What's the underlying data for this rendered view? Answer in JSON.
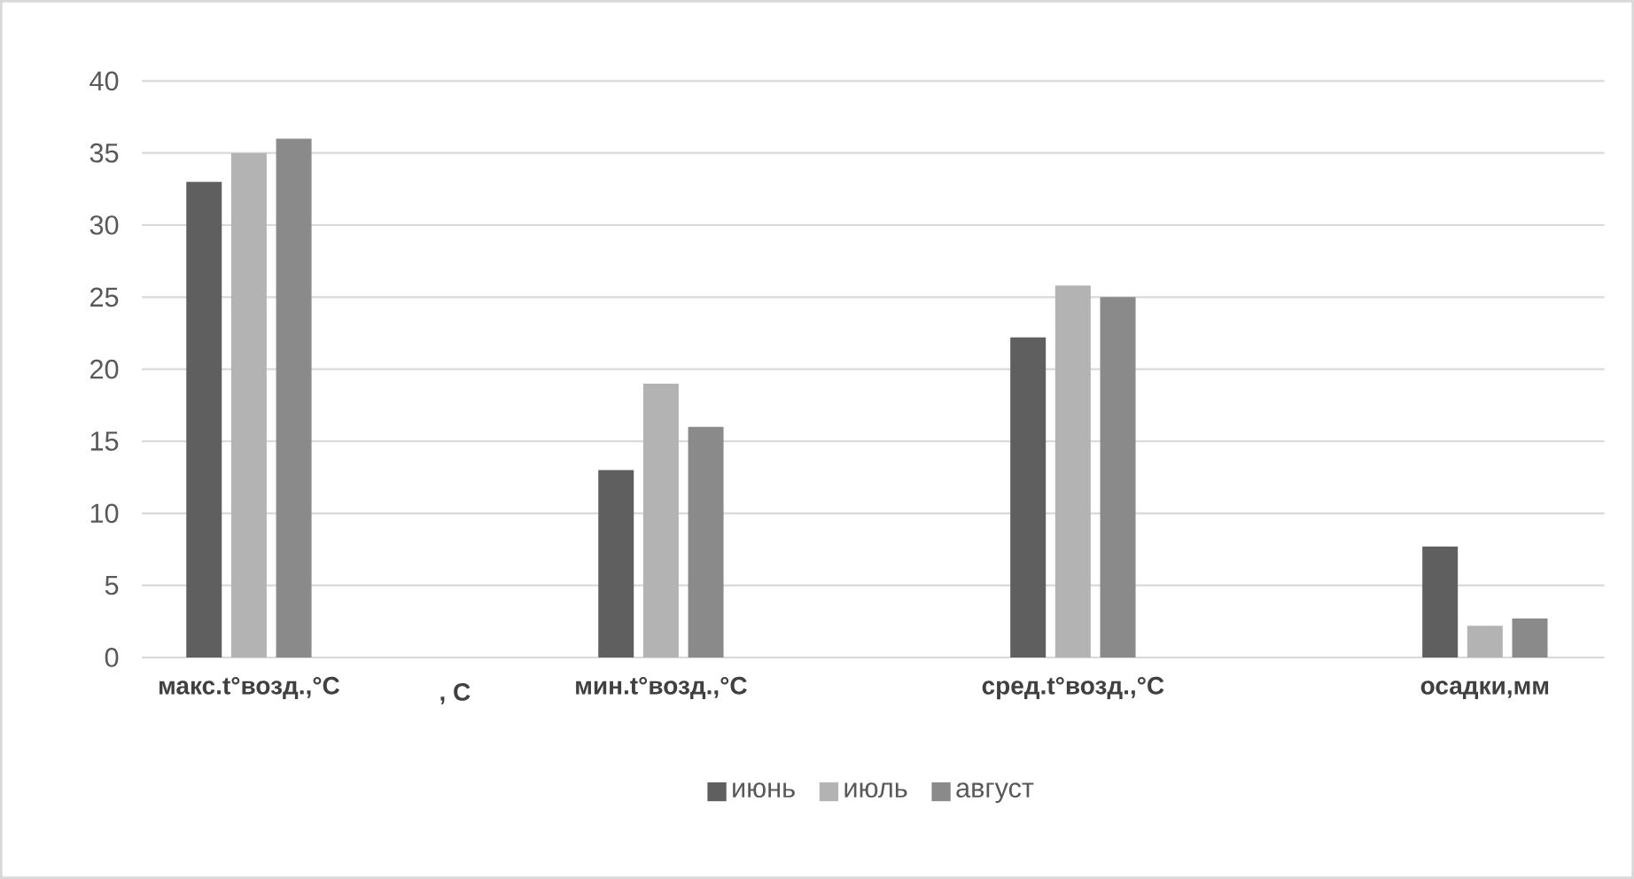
{
  "chart_data": {
    "type": "bar",
    "categories": [
      "макс.t°возд.,°C",
      "мин.t°возд.,°C",
      "сред.t°возд.,°C",
      "осадки,мм"
    ],
    "series": [
      {
        "name": "июнь",
        "color": "#5f5f5f",
        "values": [
          33,
          13,
          22.2,
          7.7
        ]
      },
      {
        "name": "июль",
        "color": "#b3b3b3",
        "values": [
          35,
          19,
          25.8,
          2.2
        ]
      },
      {
        "name": "август",
        "color": "#8a8a8a",
        "values": [
          36,
          16,
          25,
          2.7
        ]
      }
    ],
    "annotations": [
      ", С"
    ],
    "ylim": [
      0,
      40
    ],
    "yticks": [
      0,
      5,
      10,
      15,
      20,
      25,
      30,
      35,
      40
    ],
    "grid": "y",
    "legend": "bottom"
  }
}
